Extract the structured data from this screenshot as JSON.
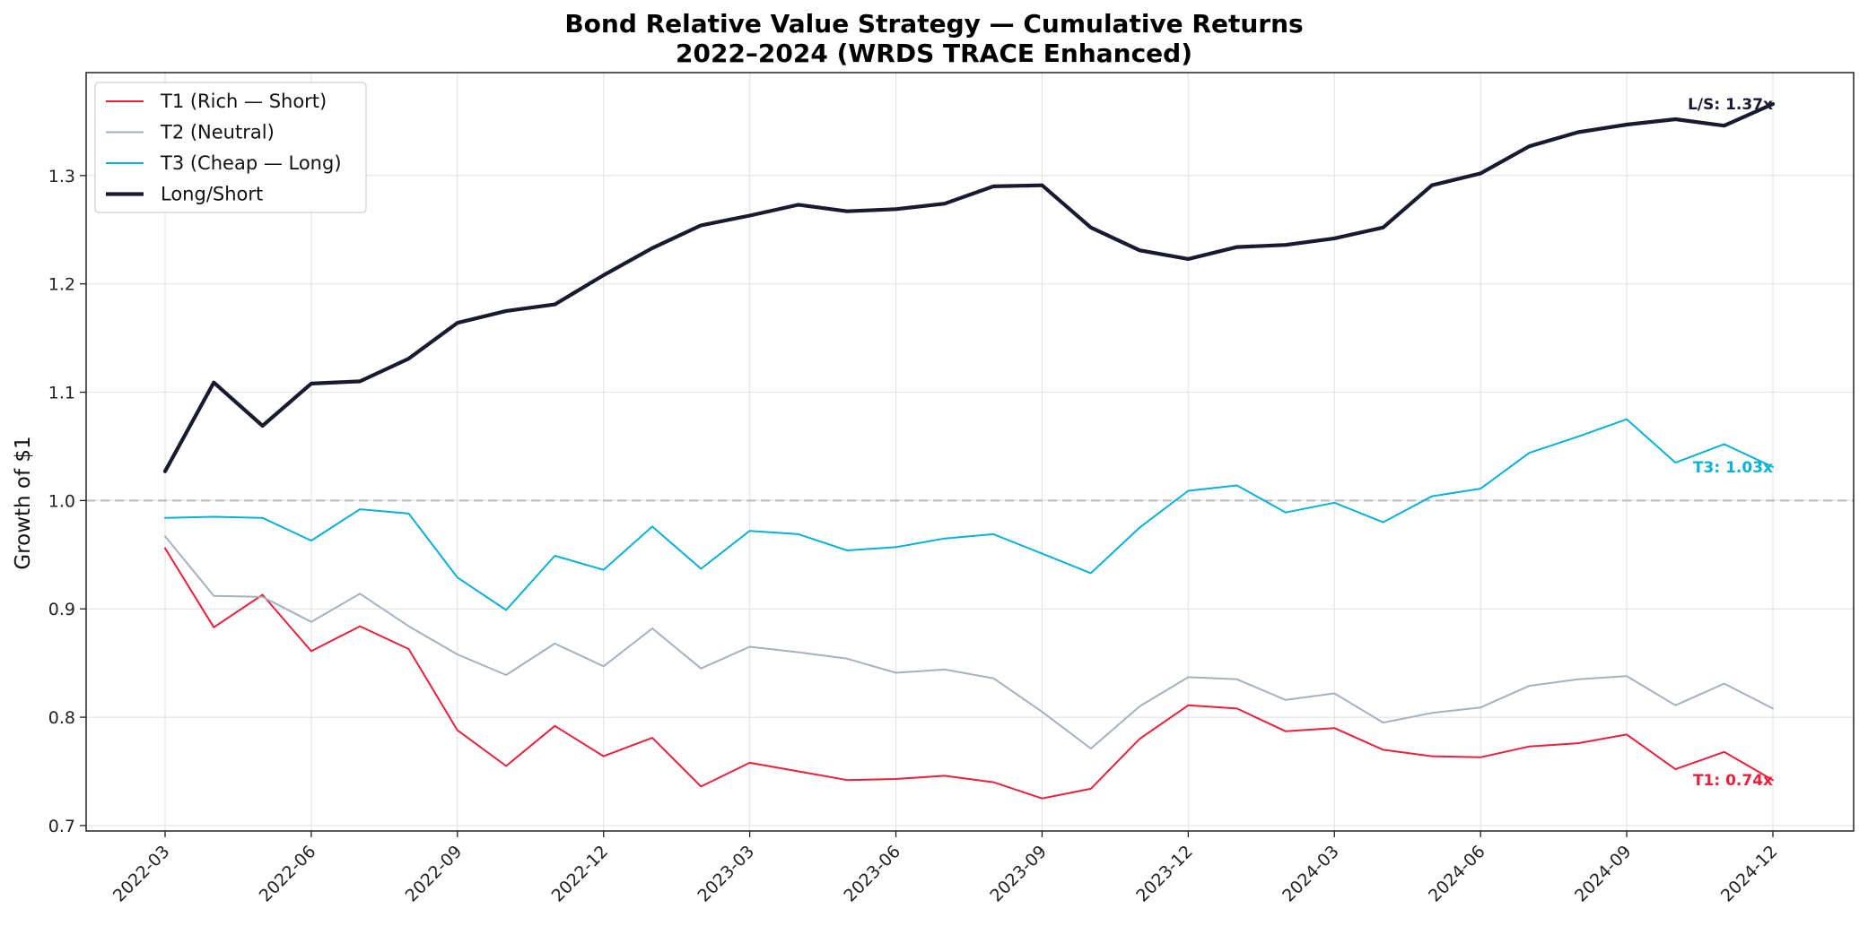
{
  "chart_data": {
    "type": "line",
    "title": "Bond Relative Value Strategy — Cumulative Returns",
    "subtitle": "2022–2024 (WRDS TRACE Enhanced)",
    "xlabel": "",
    "ylabel": "Growth of $1",
    "ylim": [
      0.695,
      1.395
    ],
    "yticks": [
      "0.7",
      "0.8",
      "0.9",
      "1.0",
      "1.1",
      "1.2",
      "1.3"
    ],
    "xticks": [
      "2022-03",
      "2022-06",
      "2022-09",
      "2022-12",
      "2023-03",
      "2023-06",
      "2023-09",
      "2023-12",
      "2024-03",
      "2024-06",
      "2024-09",
      "2024-12"
    ],
    "x": [
      "2022-03",
      "2022-04",
      "2022-05",
      "2022-06",
      "2022-07",
      "2022-08",
      "2022-09",
      "2022-10",
      "2022-11",
      "2022-12",
      "2023-01",
      "2023-02",
      "2023-03",
      "2023-04",
      "2023-05",
      "2023-06",
      "2023-07",
      "2023-08",
      "2023-09",
      "2023-10",
      "2023-11",
      "2023-12",
      "2024-01",
      "2024-02",
      "2024-03",
      "2024-04",
      "2024-05",
      "2024-06",
      "2024-07",
      "2024-08",
      "2024-09",
      "2024-10",
      "2024-11",
      "2024-12"
    ],
    "reference_line": 1.0,
    "grid": true,
    "legend_position": "top-left",
    "series": [
      {
        "name": "T1 (Rich — Short)",
        "color": "#e8203c",
        "width": "thin",
        "end_label": "T1: 0.74x",
        "values": [
          0.956,
          0.883,
          0.913,
          0.861,
          0.884,
          0.863,
          0.788,
          0.755,
          0.792,
          0.764,
          0.781,
          0.736,
          0.758,
          0.75,
          0.742,
          0.743,
          0.746,
          0.74,
          0.725,
          0.734,
          0.78,
          0.811,
          0.808,
          0.787,
          0.79,
          0.77,
          0.764,
          0.763,
          0.773,
          0.776,
          0.784,
          0.752,
          0.768,
          0.742
        ]
      },
      {
        "name": "T2 (Neutral)",
        "color": "#a8b0bc",
        "width": "thin",
        "values": [
          0.967,
          0.912,
          0.911,
          0.888,
          0.914,
          0.884,
          0.858,
          0.839,
          0.868,
          0.847,
          0.882,
          0.845,
          0.865,
          0.86,
          0.854,
          0.841,
          0.844,
          0.836,
          0.805,
          0.771,
          0.81,
          0.837,
          0.835,
          0.816,
          0.822,
          0.795,
          0.804,
          0.809,
          0.829,
          0.835,
          0.838,
          0.811,
          0.831,
          0.808
        ]
      },
      {
        "name": "T3 (Cheap — Long)",
        "color": "#09b1d4",
        "width": "thin",
        "end_label": "T3: 1.03x",
        "values": [
          0.984,
          0.985,
          0.984,
          0.963,
          0.992,
          0.988,
          0.929,
          0.899,
          0.949,
          0.936,
          0.976,
          0.937,
          0.972,
          0.969,
          0.954,
          0.957,
          0.965,
          0.969,
          0.951,
          0.933,
          0.975,
          1.009,
          1.014,
          0.989,
          0.998,
          0.98,
          1.004,
          1.011,
          1.044,
          1.059,
          1.075,
          1.035,
          1.052,
          1.031
        ]
      },
      {
        "name": "Long/Short",
        "color": "#1a1a2e",
        "width": "thick",
        "end_label": "L/S: 1.37x",
        "values": [
          1.027,
          1.109,
          1.069,
          1.108,
          1.11,
          1.131,
          1.164,
          1.175,
          1.181,
          1.208,
          1.233,
          1.254,
          1.263,
          1.273,
          1.267,
          1.269,
          1.274,
          1.29,
          1.291,
          1.252,
          1.231,
          1.223,
          1.234,
          1.236,
          1.242,
          1.252,
          1.291,
          1.302,
          1.327,
          1.34,
          1.347,
          1.352,
          1.346,
          1.366
        ]
      }
    ]
  }
}
